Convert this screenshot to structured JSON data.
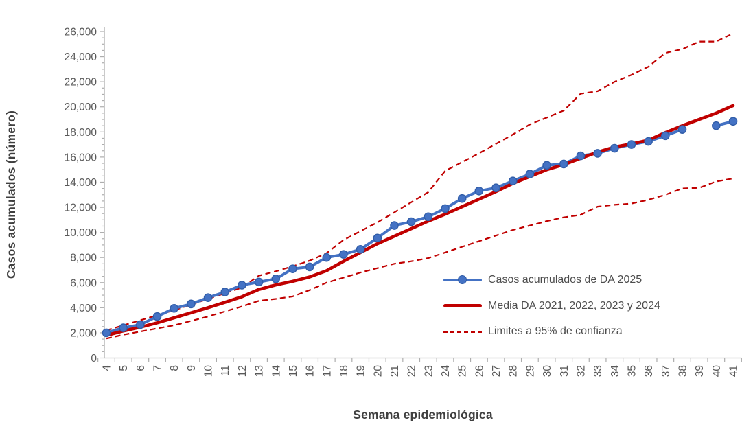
{
  "chart_data": {
    "type": "line",
    "title": "",
    "xlabel": "Semana epidemiológica",
    "ylabel": "Casos acumulados (número)",
    "x": [
      4,
      5,
      6,
      7,
      8,
      9,
      10,
      11,
      12,
      13,
      14,
      15,
      16,
      17,
      18,
      19,
      20,
      21,
      22,
      23,
      24,
      25,
      26,
      27,
      28,
      29,
      30,
      31,
      32,
      33,
      34,
      35,
      36,
      37,
      38,
      39,
      40,
      41
    ],
    "x_tick_labels": [
      "4",
      "5",
      "6",
      "7",
      "8",
      "9",
      "10",
      "11",
      "12",
      "13",
      "14",
      "15",
      "16",
      "17",
      "18",
      "19",
      "20",
      "21",
      "22",
      "23",
      "24",
      "25",
      "26",
      "27",
      "28",
      "29",
      "30",
      "31",
      "32",
      "33",
      "34",
      "35",
      "36",
      "37",
      "38",
      "39",
      "40",
      "41"
    ],
    "ylim": [
      0,
      26000
    ],
    "ytick_step": 2000,
    "ytick_minor_step": 500,
    "y_tick_labels": [
      "0",
      "2,000",
      "4,000",
      "6,000",
      "8,000",
      "10,000",
      "12,000",
      "14,000",
      "16,000",
      "18,000",
      "20,000",
      "22,000",
      "24,000",
      "26,000"
    ],
    "grid": false,
    "legend_position": "inside-lower-right",
    "series": [
      {
        "id": "da2025",
        "name": "Casos acumulados de DA 2025",
        "color": "#4472C4",
        "style": "solid-with-markers",
        "values": [
          2000,
          2400,
          2650,
          3300,
          3950,
          4300,
          4800,
          5250,
          5800,
          6050,
          6300,
          7100,
          7250,
          8000,
          8250,
          8650,
          9550,
          10550,
          10850,
          11250,
          11900,
          12700,
          13300,
          13550,
          14100,
          14650,
          15350,
          15450,
          16100,
          16300,
          16700,
          17000,
          17250,
          17700,
          18200,
          null,
          18500,
          18850
        ]
      },
      {
        "id": "media",
        "name": "Media DA 2021, 2022, 2023 y 2024",
        "color": "#C00000",
        "style": "solid-thick",
        "values": [
          1800,
          2150,
          2450,
          2800,
          3200,
          3600,
          4000,
          4430,
          4870,
          5450,
          5820,
          6100,
          6450,
          6950,
          7700,
          8400,
          9100,
          9700,
          10300,
          10900,
          11450,
          12050,
          12650,
          13250,
          13900,
          14450,
          15000,
          15400,
          15900,
          16400,
          16800,
          17050,
          17350,
          17950,
          18500,
          19000,
          19500,
          20100
        ]
      },
      {
        "id": "limite_superior",
        "name": "Limites a 95% de confianza",
        "color": "#C00000",
        "style": "dashed",
        "values": [
          2200,
          2600,
          3000,
          3400,
          3800,
          4250,
          4700,
          5150,
          5600,
          6550,
          6900,
          7300,
          7750,
          8350,
          9400,
          10100,
          10800,
          11600,
          12400,
          13200,
          14900,
          15600,
          16300,
          17050,
          17800,
          18600,
          19150,
          19700,
          21050,
          21250,
          22000,
          22550,
          23200,
          24300,
          24600,
          25200,
          25200,
          25850
        ]
      },
      {
        "id": "limite_inferior",
        "name": "Limites a 95% de confianza",
        "color": "#C00000",
        "style": "dashed",
        "values": [
          1550,
          1850,
          2100,
          2350,
          2600,
          2950,
          3300,
          3700,
          4100,
          4550,
          4700,
          4900,
          5400,
          6000,
          6400,
          6800,
          7150,
          7500,
          7700,
          7950,
          8400,
          8850,
          9300,
          9750,
          10200,
          10550,
          10900,
          11200,
          11400,
          12050,
          12200,
          12300,
          12600,
          13000,
          13500,
          13550,
          14050,
          14300
        ]
      }
    ],
    "legend": [
      {
        "label": "Casos acumulados de DA 2025",
        "swatch": "blue-line-marker"
      },
      {
        "label": "Media DA 2021, 2022, 2023 y 2024",
        "swatch": "red-thick-line"
      },
      {
        "label": "Limites a 95% de confianza",
        "swatch": "red-dashed-line"
      }
    ]
  },
  "colors": {
    "series_2025": "#4472C4",
    "series_2025_marker_edge": "#315da8",
    "series_media": "#C00000",
    "confidence_limits": "#C00000",
    "axis_line": "#ADADAD",
    "tick_label": "#595959",
    "axis_title": "#3f3f3f",
    "legend_text": "#4d4d4d",
    "background": "#ffffff"
  }
}
